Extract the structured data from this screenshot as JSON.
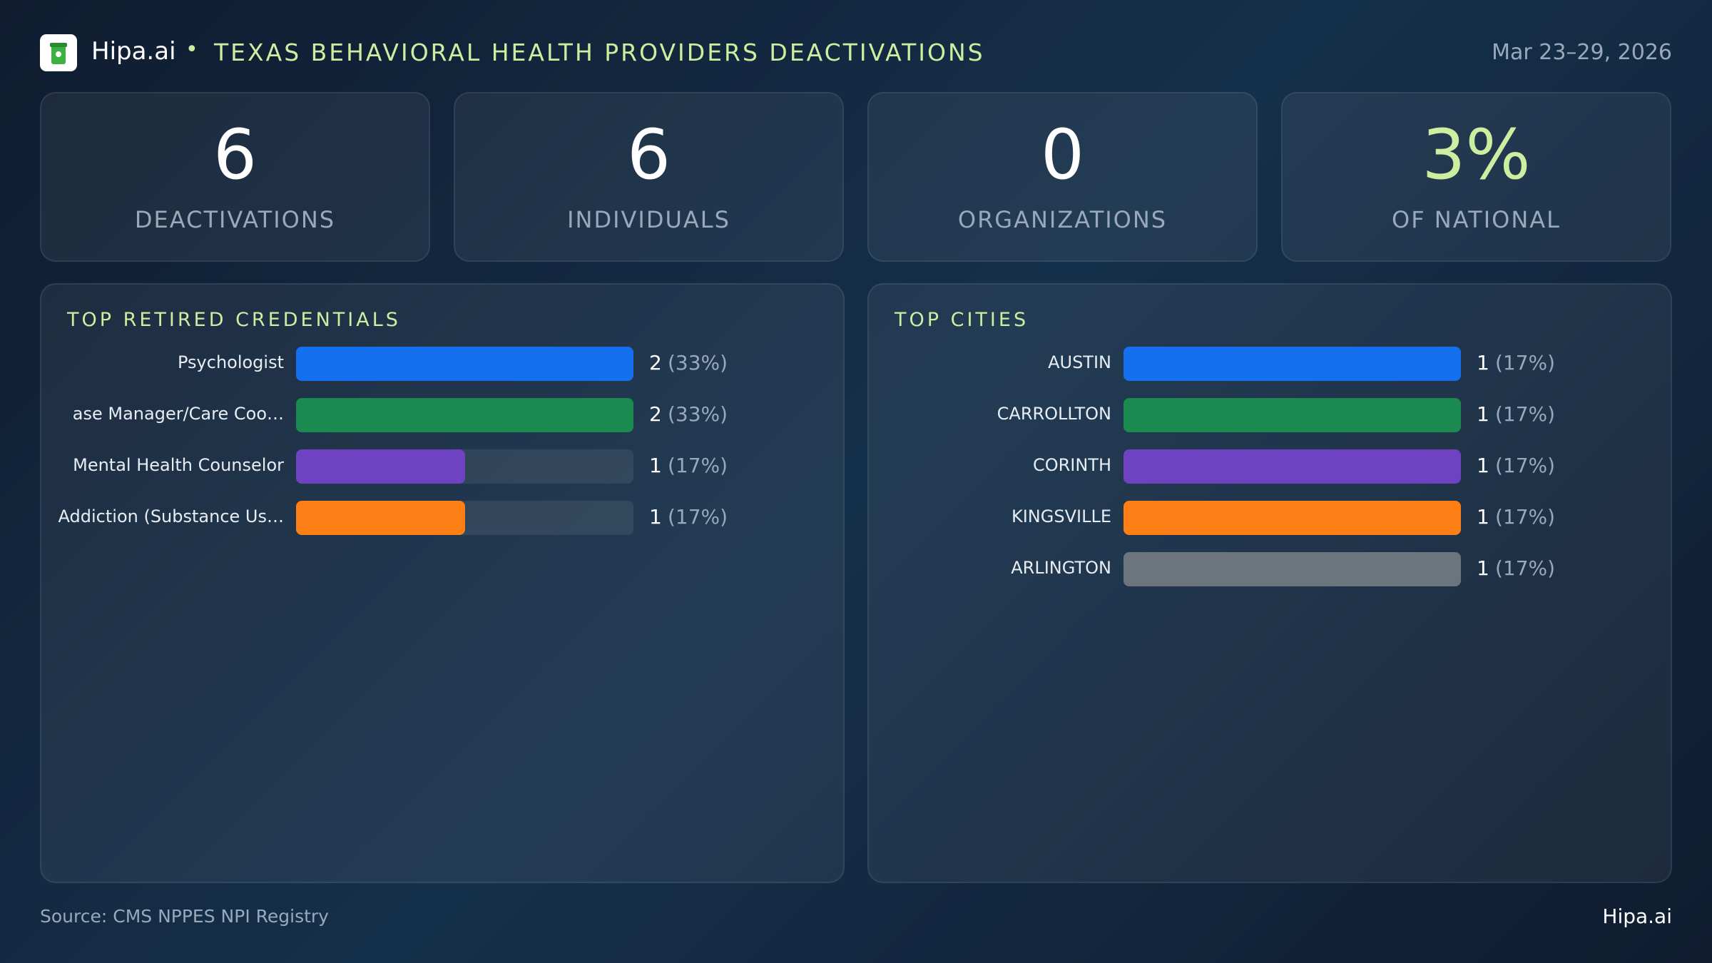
{
  "header": {
    "brand": "Hipa.ai",
    "separator": "•",
    "title": "TEXAS BEHAVIORAL HEALTH PROVIDERS DEACTIVATIONS",
    "date": "Mar 23–29, 2026"
  },
  "kpis": [
    {
      "value": "6",
      "label": "DEACTIVATIONS"
    },
    {
      "value": "6",
      "label": "INDIVIDUALS"
    },
    {
      "value": "0",
      "label": "ORGANIZATIONS"
    },
    {
      "value": "3%",
      "label": "OF NATIONAL"
    }
  ],
  "chart_data": [
    {
      "type": "hbar",
      "title": "TOP RETIRED CREDENTIALS",
      "categories": [
        "Psychologist",
        "ase Manager/Care Coo…",
        "Mental Health Counselor",
        "Addiction (Substance Us…"
      ],
      "values": [
        2,
        2,
        1,
        1
      ],
      "percent_labels": [
        "(33%)",
        "(33%)",
        "(17%)",
        "(17%)"
      ],
      "colors": [
        "#1570ef",
        "#1b8a50",
        "#6f42c1",
        "#fd7e14"
      ],
      "xlim": [
        0,
        2
      ]
    },
    {
      "type": "hbar",
      "title": "TOP CITIES",
      "categories": [
        "AUSTIN",
        "CARROLLTON",
        "CORINTH",
        "KINGSVILLE",
        "ARLINGTON"
      ],
      "values": [
        1,
        1,
        1,
        1,
        1
      ],
      "percent_labels": [
        "(17%)",
        "(17%)",
        "(17%)",
        "(17%)",
        "(17%)"
      ],
      "colors": [
        "#1570ef",
        "#1b8a50",
        "#6f42c1",
        "#fd7e14",
        "#6c757d"
      ],
      "xlim": [
        0,
        1
      ]
    }
  ],
  "footer": {
    "source": "Source: CMS NPPES NPI Registry",
    "brand": "Hipa.ai"
  }
}
